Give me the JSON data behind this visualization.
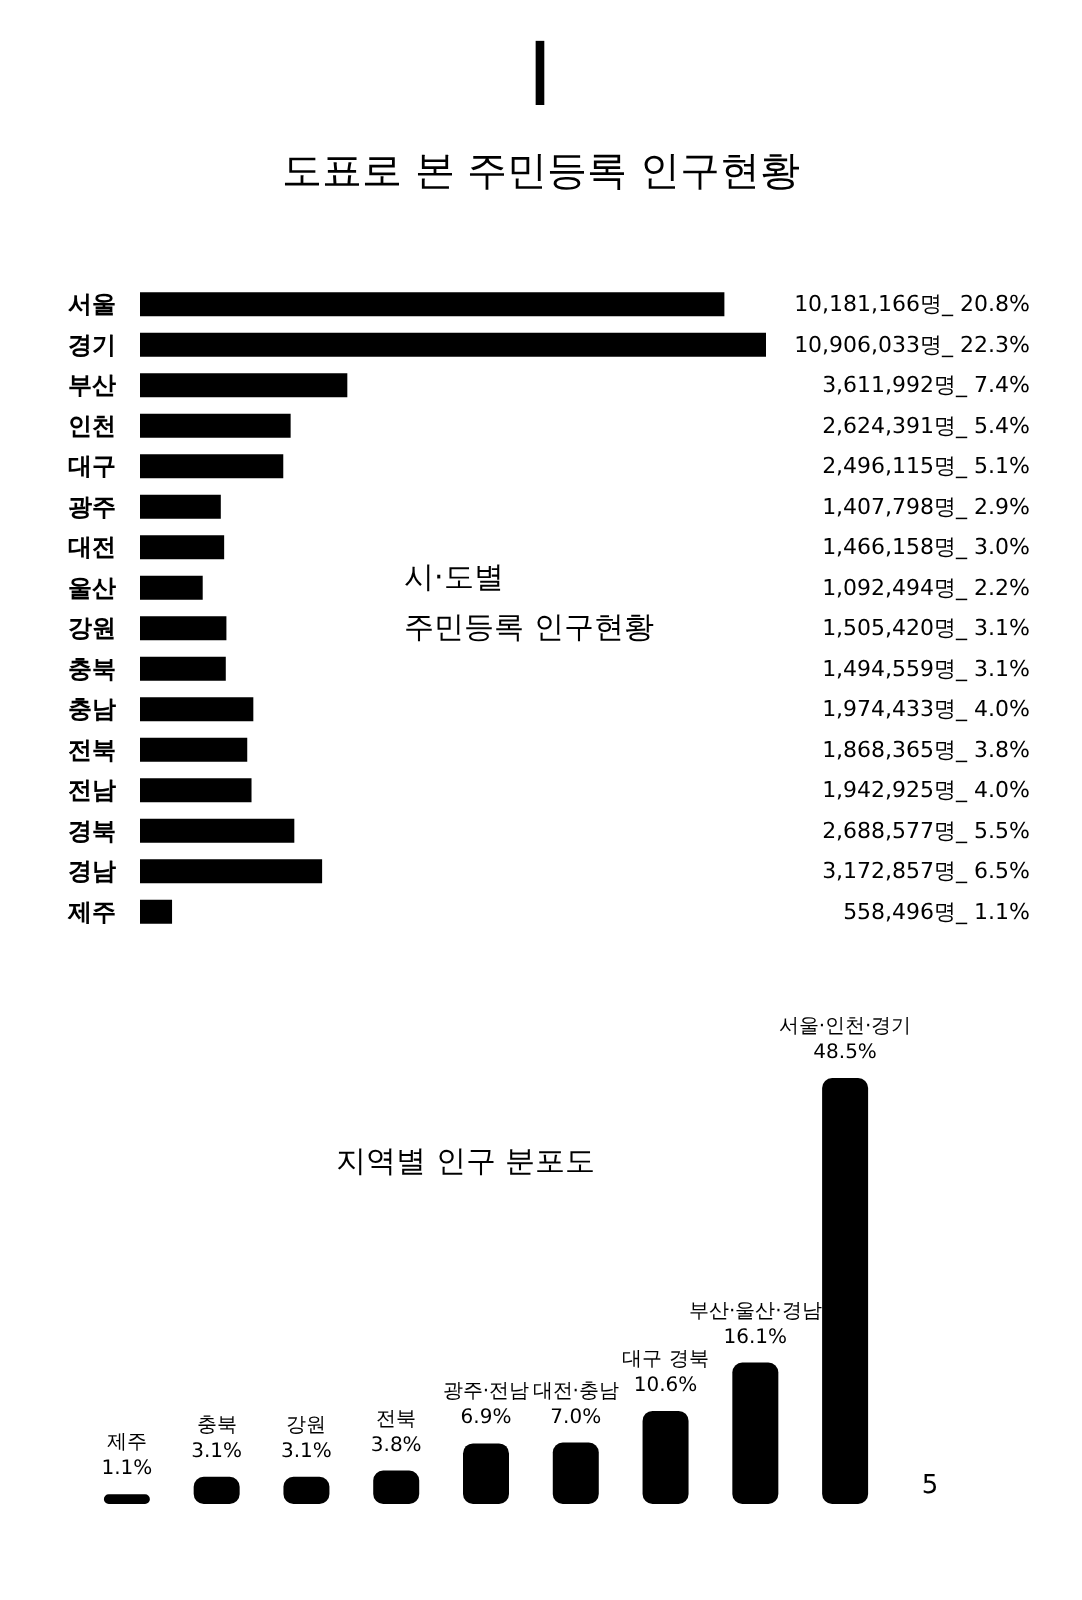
{
  "chart_data": [
    {
      "type": "bar",
      "orientation": "horizontal",
      "title": "도표로 본 주민등록 인구현황",
      "subtitle": "시·도별\n주민등록 인구현황",
      "annotations": [
        "I"
      ],
      "categories": [
        "서울",
        "경기",
        "부산",
        "인천",
        "대구",
        "광주",
        "대전",
        "울산",
        "강원",
        "충북",
        "충남",
        "전북",
        "전남",
        "경북",
        "경남",
        "제주"
      ],
      "values": [
        10181166,
        10906033,
        3611992,
        2624391,
        2496115,
        1407798,
        1466158,
        1092494,
        1505420,
        1494559,
        1974433,
        1868365,
        1942925,
        2688577,
        3172857,
        558496
      ],
      "value_labels": [
        "10,181,166명_ 20.8%",
        "10,906,033명_ 22.3%",
        "3,611,992명_ 7.4%",
        "2,624,391명_ 5.4%",
        "2,496,115명_ 5.1%",
        "1,407,798명_ 2.9%",
        "1,466,158명_ 3.0%",
        "1,092,494명_ 2.2%",
        "1,505,420명_ 3.1%",
        "1,494,559명_ 3.1%",
        "1,974,433명_ 4.0%",
        "1,868,365명_ 3.8%",
        "1,942,925명_ 4.0%",
        "2,688,577명_ 5.5%",
        "3,172,857명_ 6.5%",
        "558,496명_ 1.1%"
      ],
      "color": "#000000",
      "tick_labels": "y"
    },
    {
      "type": "bar",
      "title": "지역별 인구 분포도",
      "annotations": [
        "5"
      ],
      "categories": [
        "제주",
        "충북",
        "강원",
        "전북",
        "광주·전남",
        "대전·충남",
        "대구 경북",
        "부산·울산·경남",
        "서울·인천·경기"
      ],
      "values": [
        1.1,
        3.1,
        3.1,
        3.8,
        6.9,
        7.0,
        10.6,
        16.1,
        48.5
      ],
      "value_labels": [
        "1.1%",
        "3.1%",
        "3.1%",
        "3.8%",
        "6.9%",
        "7.0%",
        "10.6%",
        "16.1%",
        "48.5%"
      ],
      "color": "#000000",
      "tick_labels": false
    }
  ]
}
